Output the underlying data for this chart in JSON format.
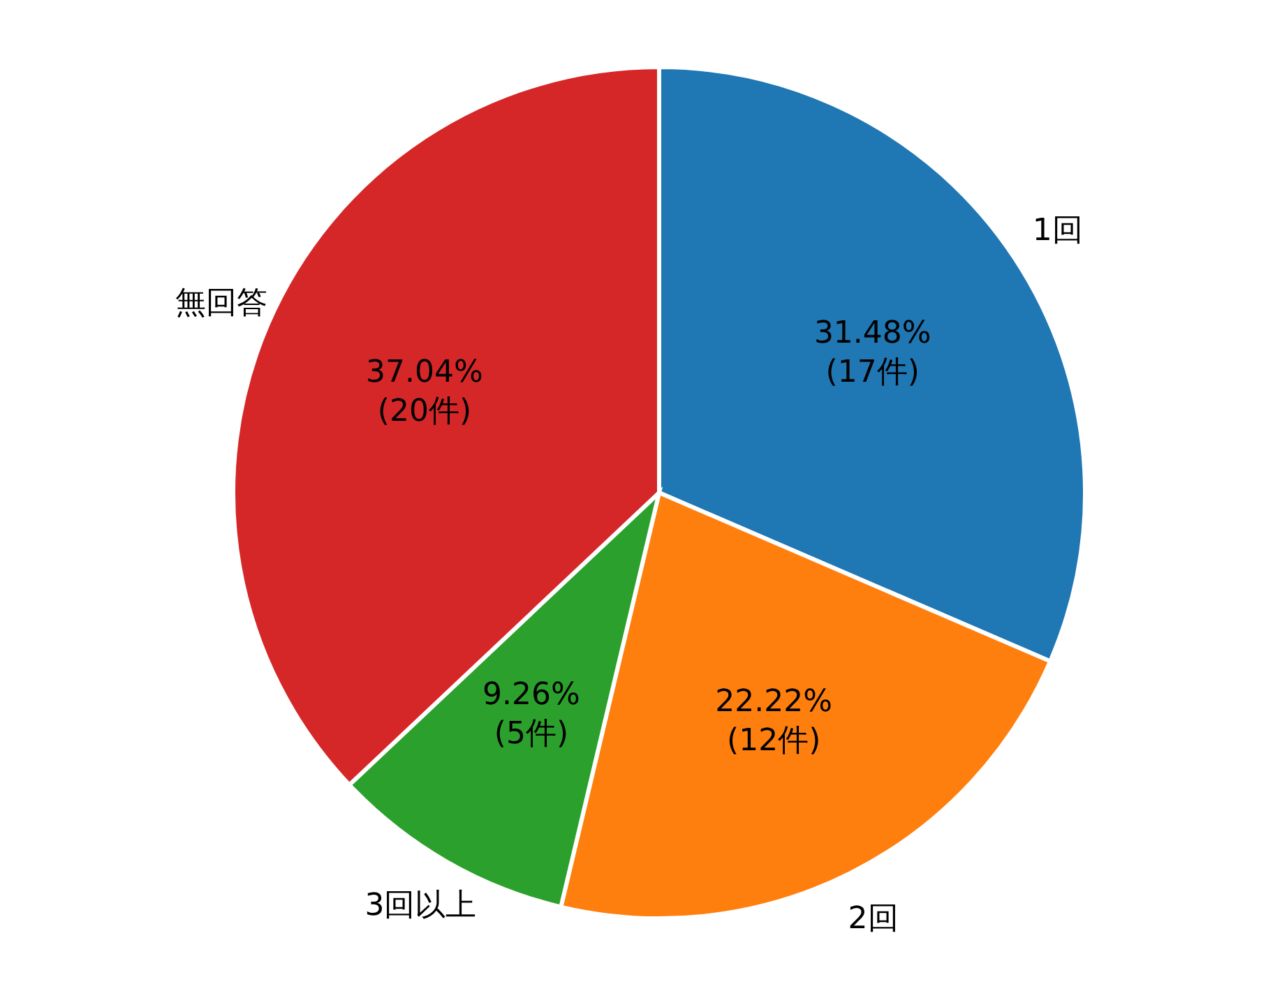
{
  "chart_data": {
    "type": "pie",
    "categories": [
      "1回",
      "2回",
      "3回以上",
      "無回答"
    ],
    "values": [
      17,
      12,
      5,
      20
    ],
    "colors": [
      "#1f77b4",
      "#ff7f0e",
      "#2ca02c",
      "#d62728"
    ],
    "value_labels": [
      "31.48%\n(17件)",
      "22.22%\n(12件)",
      "9.26%\n(5件)",
      "37.04%\n(20件)"
    ],
    "legend": false
  }
}
